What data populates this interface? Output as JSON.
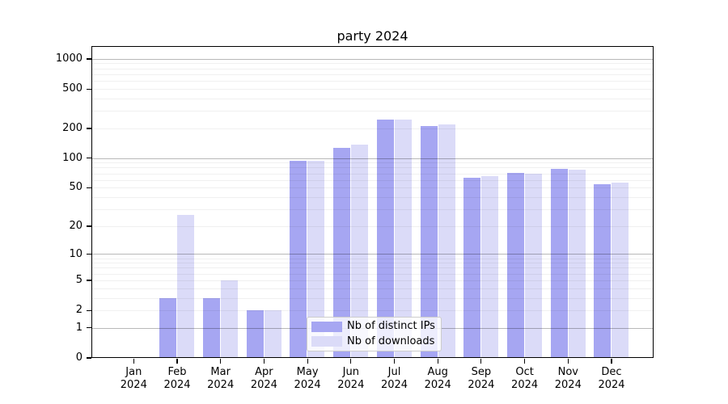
{
  "chart_data": {
    "type": "bar",
    "title": "party 2024",
    "x_categories": [
      "Jan",
      "Feb",
      "Mar",
      "Apr",
      "May",
      "Jun",
      "Jul",
      "Aug",
      "Sep",
      "Oct",
      "Nov",
      "Dec"
    ],
    "x_year_label": "2024",
    "series": [
      {
        "name": "Nb of distinct IPs",
        "color": "#a6a6f2",
        "values": [
          0,
          3,
          3,
          2,
          94,
          128,
          245,
          210,
          63,
          71,
          78,
          54
        ]
      },
      {
        "name": "Nb of downloads",
        "color": "#dbdbf8",
        "values": [
          0,
          26,
          5,
          2,
          94,
          137,
          245,
          219,
          65,
          70,
          77,
          56
        ]
      }
    ],
    "y_scale": "log1p",
    "y_ticks": [
      0,
      1,
      2,
      5,
      10,
      20,
      50,
      100,
      200,
      500,
      1000
    ],
    "y_major_gridlines": [
      1,
      10,
      100,
      1000
    ],
    "y_minor_gridlines": [
      2,
      3,
      4,
      5,
      6,
      7,
      8,
      9,
      20,
      30,
      40,
      50,
      60,
      70,
      80,
      90,
      200,
      300,
      400,
      500,
      600,
      700,
      800,
      900
    ],
    "ylim": [
      0,
      1360
    ],
    "grid": true,
    "legend_position": "lower center",
    "colors": {
      "background": "#ffffff",
      "axis": "#000000",
      "major_grid": "rgba(0,0,0,0.28)",
      "minor_grid": "rgba(0,0,0,0.06)",
      "legend_border": "#cccccc",
      "legend_background": "rgba(255,255,255,0.8)"
    }
  }
}
